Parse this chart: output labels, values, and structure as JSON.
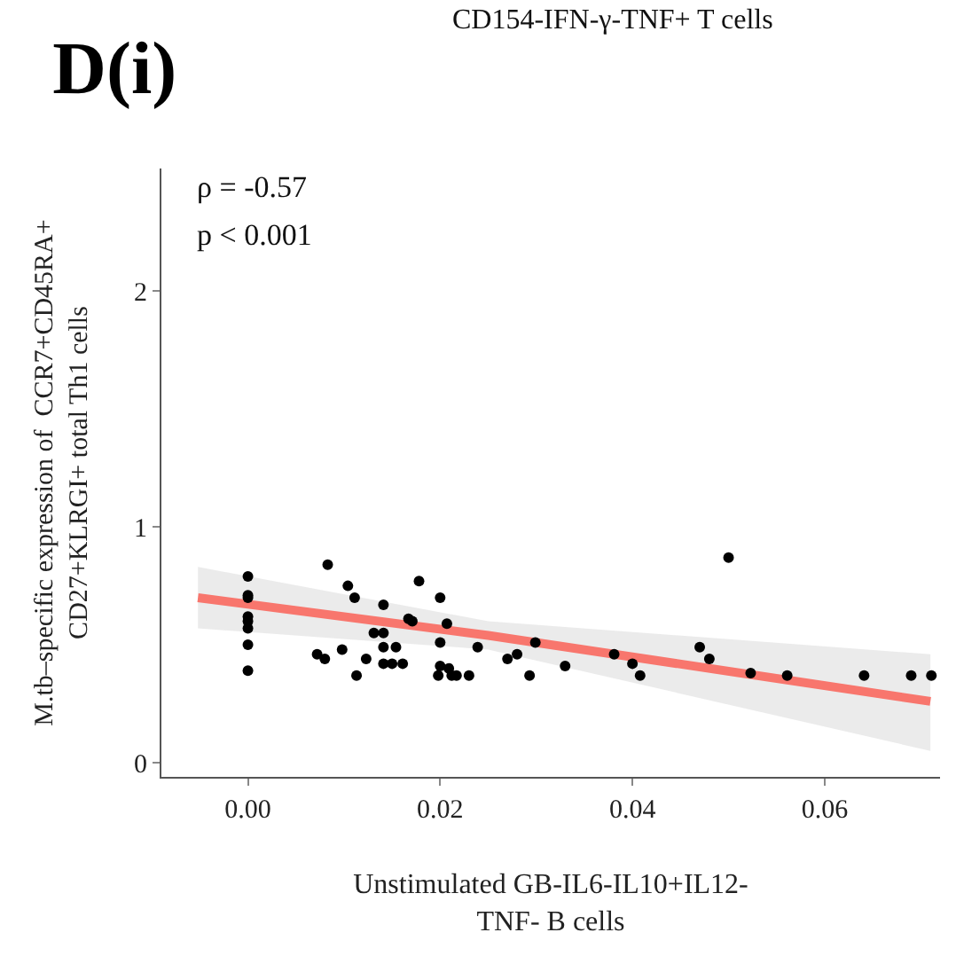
{
  "chart_data": {
    "type": "scatter",
    "title": "D(i)",
    "xlabel": "Unstimulated GB-IL6-IL10+IL12-\nTNF- B cells",
    "ylabel": "M.tb–specific expression of  CCR7+CD45RA+\nCD27+KLRGI+ total Th1 cells",
    "annotations": [
      "CD154-IFN-γ-TNF+ T cells",
      "ρ = -0.57",
      "p < 0.001"
    ],
    "x": [
      0.0,
      0.0,
      0.0,
      0.0,
      0.0,
      0.0,
      0.0,
      0.0,
      0.0083,
      0.0072,
      0.008,
      0.0098,
      0.0104,
      0.0111,
      0.0113,
      0.0123,
      0.0131,
      0.0141,
      0.0141,
      0.0141,
      0.0141,
      0.015,
      0.0154,
      0.0161,
      0.0167,
      0.0171,
      0.0178,
      0.02,
      0.02,
      0.0207,
      0.0198,
      0.02,
      0.0209,
      0.0212,
      0.0217,
      0.023,
      0.0239,
      0.027,
      0.028,
      0.0293,
      0.0299,
      0.033,
      0.0381,
      0.04,
      0.0408,
      0.05,
      0.047,
      0.048,
      0.0523,
      0.0561,
      0.0641,
      0.069,
      0.0711
    ],
    "series": [
      {
        "color": "#000000",
        "marker": "circle",
        "values": [
          0.79,
          0.71,
          0.7,
          0.62,
          0.6,
          0.57,
          0.5,
          0.39,
          0.84,
          0.46,
          0.44,
          0.48,
          0.75,
          0.7,
          0.37,
          0.44,
          0.55,
          0.67,
          0.55,
          0.49,
          0.42,
          0.42,
          0.49,
          0.42,
          0.61,
          0.6,
          0.77,
          0.7,
          0.51,
          0.59,
          0.37,
          0.41,
          0.4,
          0.37,
          0.37,
          0.37,
          0.49,
          0.44,
          0.46,
          0.37,
          0.51,
          0.41,
          0.46,
          0.42,
          0.37,
          0.87,
          0.49,
          0.44,
          0.38,
          0.37,
          0.37,
          0.37,
          0.37
        ]
      },
      {
        "type": "line",
        "color": "#f8766d",
        "x": [
          -0.0052,
          0.025,
          0.071
        ],
        "values": [
          0.7,
          0.54,
          0.26
        ],
        "lower": [
          0.57,
          0.48,
          0.05
        ],
        "upper": [
          0.83,
          0.6,
          0.46
        ]
      }
    ],
    "xlim": [
      -0.009,
      0.072
    ],
    "ylim": [
      -0.06,
      2.52
    ],
    "xticks": [
      {
        "value": 0,
        "label": "0.00"
      },
      {
        "value": 0.02,
        "label": "0.02"
      },
      {
        "value": 0.04,
        "label": "0.04"
      },
      {
        "value": 0.06,
        "label": "0.06"
      }
    ],
    "yticks": [
      0,
      1,
      2
    ]
  }
}
